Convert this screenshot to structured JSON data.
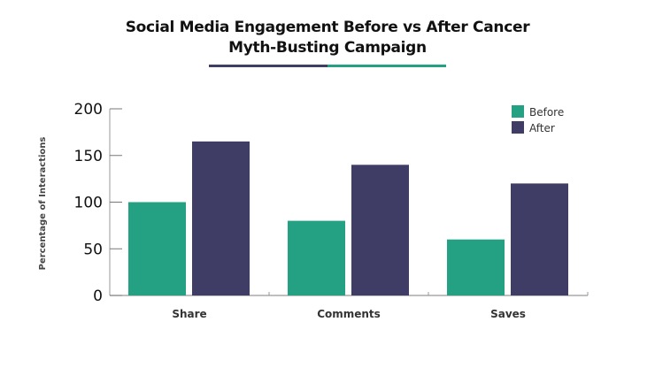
{
  "chart_data": {
    "type": "bar",
    "title_line1": "Social Media Engagement Before vs After Cancer",
    "title_line2": "Myth-Busting Campaign",
    "categories": [
      "Share",
      "Comments",
      "Saves"
    ],
    "series": [
      {
        "name": "Before",
        "color": "#24a083",
        "values": [
          100,
          80,
          60
        ]
      },
      {
        "name": "After",
        "color": "#3f3d66",
        "values": [
          165,
          140,
          120
        ]
      }
    ],
    "xlabel": "",
    "ylabel": "Percentage of Interactions",
    "ylim": [
      0,
      200
    ],
    "yticks": [
      "0",
      "50",
      "100",
      "150",
      "200"
    ],
    "ytick_values": [
      0,
      50,
      100,
      150,
      200
    ],
    "legend_position": "top-right",
    "grid": false,
    "underline_colors": [
      "#3f3d66",
      "#24a083"
    ]
  }
}
